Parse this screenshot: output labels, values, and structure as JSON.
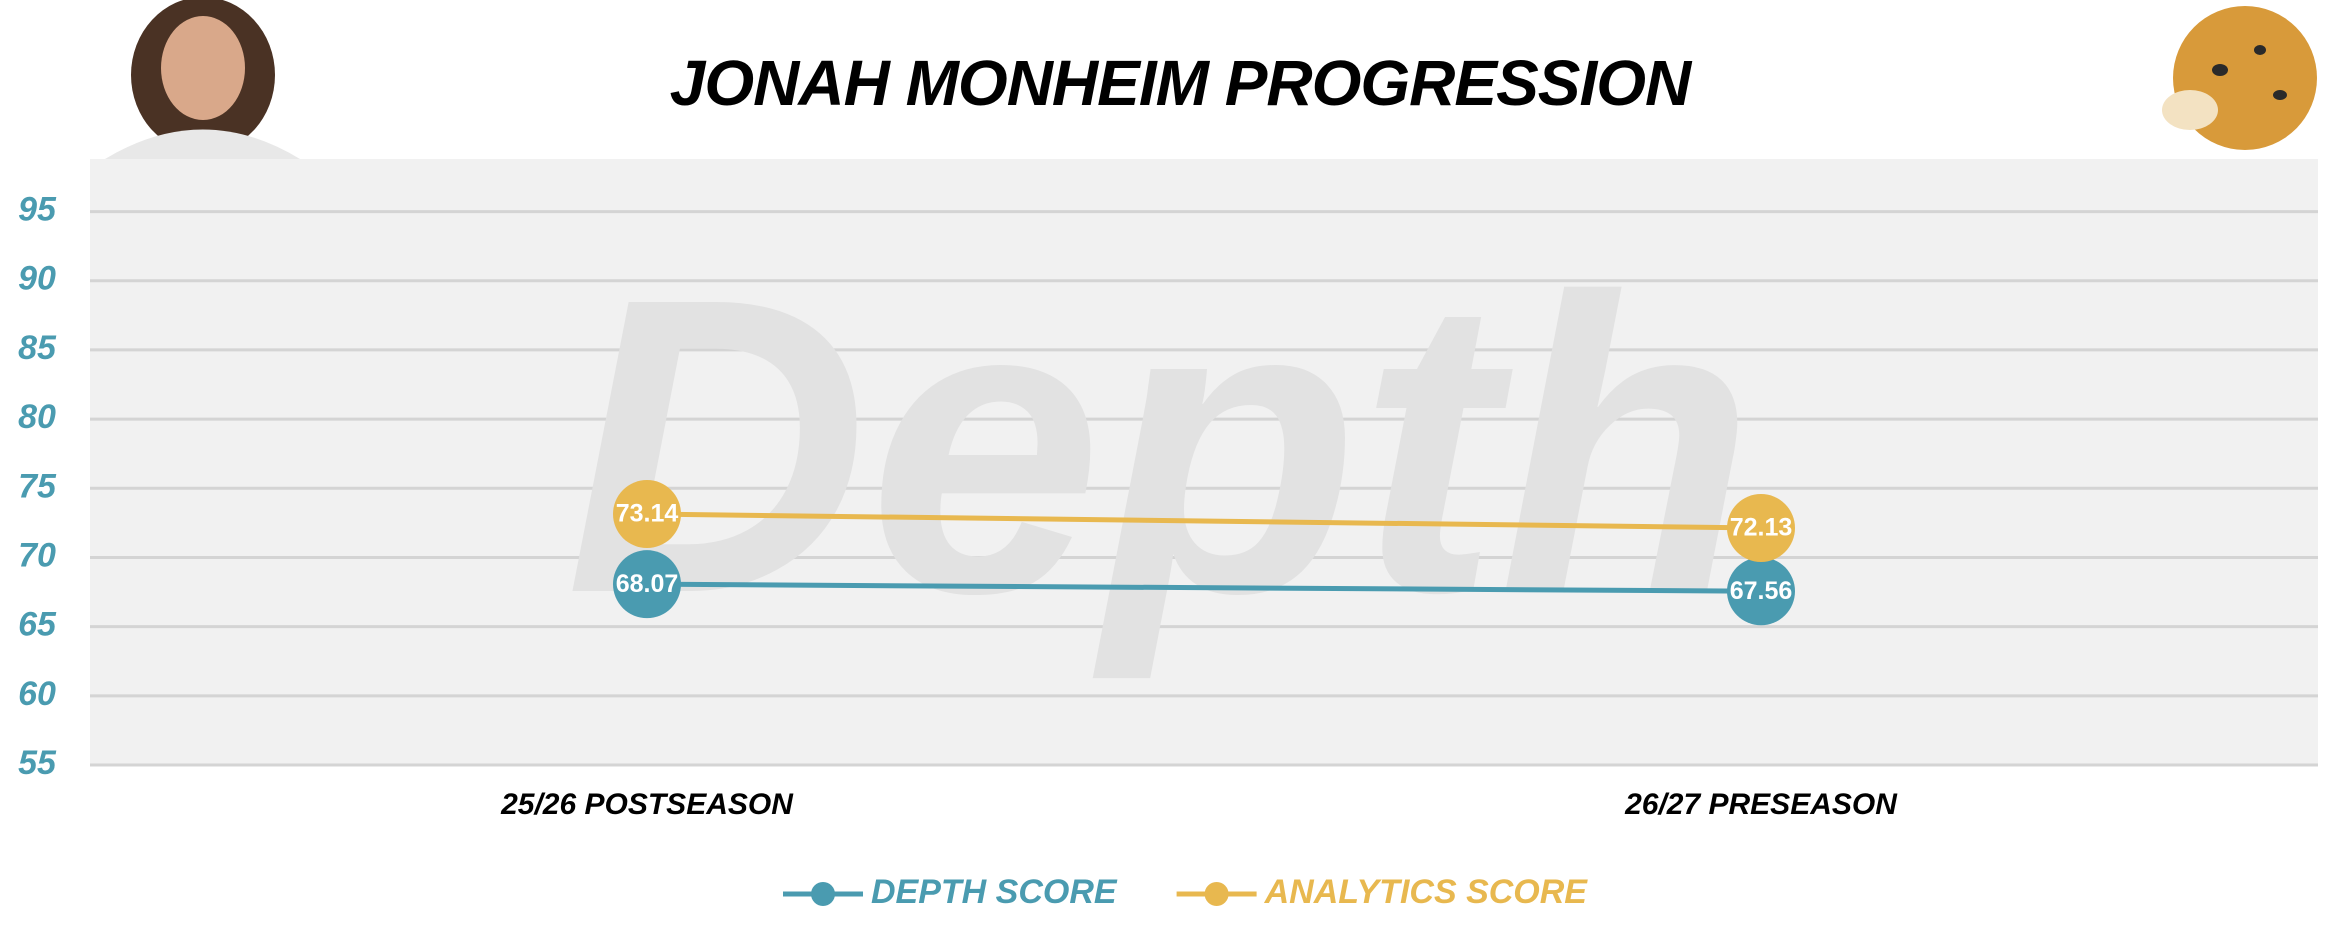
{
  "chart_data": {
    "type": "line",
    "title": "JONAH MONHEIM PROGRESSION",
    "watermark": "Depth",
    "categories": [
      "25/26 POSTSEASON",
      "26/27 PRESEASON"
    ],
    "series": [
      {
        "name": "DEPTH SCORE",
        "color": "#4a9bb0",
        "values": [
          68.07,
          67.56
        ]
      },
      {
        "name": "ANALYTICS SCORE",
        "color": "#e8b84f",
        "values": [
          73.14,
          72.13
        ]
      }
    ],
    "ylim": [
      55,
      98.8
    ],
    "yticks": [
      55,
      60,
      65,
      70,
      75,
      80,
      85,
      90,
      95
    ],
    "grid": true,
    "legend": "bottom"
  }
}
